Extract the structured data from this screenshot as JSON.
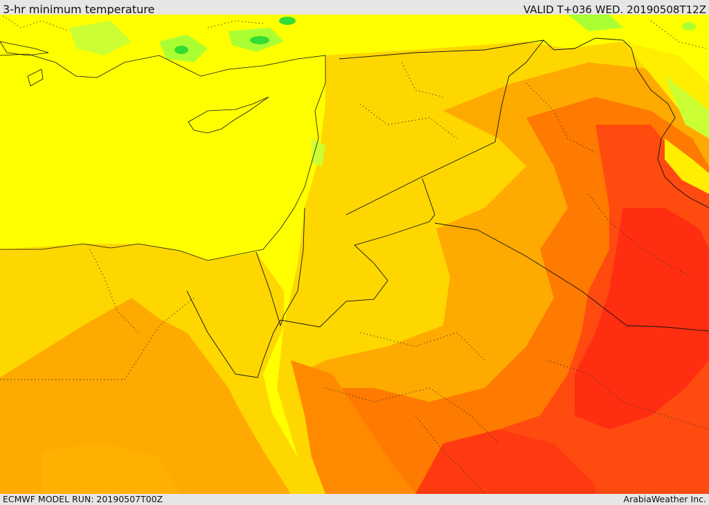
{
  "header": {
    "title": "3-hr minimum temperature",
    "valid_time": "VALID T+036 WED. 20190508T12Z"
  },
  "footer": {
    "model_run": "ECMWF MODEL RUN: 20190507T00Z",
    "credit": "ArabiaWeather Inc."
  },
  "map": {
    "field": "3-hr minimum temperature",
    "color_scale": {
      "green": "#33dd33",
      "light_green": "#aaff33",
      "yellow": "#ffff00",
      "light_orange": "#ffd700",
      "orange": "#ffaa00",
      "dark_orange": "#ff7a00",
      "red_orange": "#ff4a10",
      "red": "#ff2e10"
    },
    "border_color": "#111111"
  }
}
